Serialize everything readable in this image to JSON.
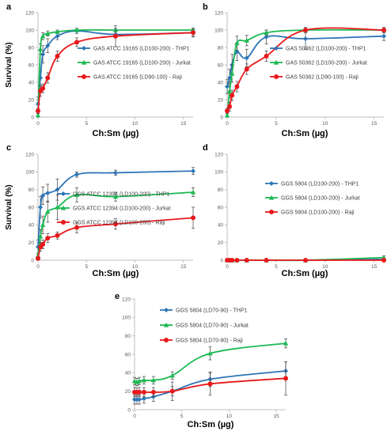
{
  "colors": {
    "blue": "#2E75B6",
    "green": "#1DB954",
    "red": "#E8191C",
    "axis": "#BFBFBF"
  },
  "chart_data": [
    {
      "panel": "a",
      "type": "line",
      "xlabel": "Ch:Sm (µg)",
      "ylabel": "Survival (%)",
      "xlim": [
        0,
        16
      ],
      "ylim": [
        0,
        120
      ],
      "xticks": [
        0,
        5,
        10,
        15
      ],
      "yticks": [
        0,
        20,
        40,
        60,
        80,
        100,
        120
      ],
      "legend_position": "center-right",
      "series": [
        {
          "name": "GAS ATCC 19165 (LD100-200) - THP1",
          "color": "blue",
          "marker": "diamond",
          "x": [
            0,
            0.25,
            0.5,
            1,
            2,
            4,
            8,
            16
          ],
          "y": [
            15,
            45,
            72,
            82,
            93,
            99,
            95,
            97
          ],
          "err": [
            8,
            8,
            10,
            8,
            4,
            3,
            4,
            4
          ]
        },
        {
          "name": "GAS ATCC 19165 (LD100-200) - Jurkat",
          "color": "green",
          "marker": "triangle",
          "x": [
            0,
            0.25,
            0.5,
            1,
            2,
            4,
            8,
            16
          ],
          "y": [
            2,
            78,
            93,
            96,
            98,
            100,
            100,
            100
          ],
          "err": [
            2,
            6,
            4,
            3,
            2,
            2,
            2,
            2
          ]
        },
        {
          "name": "GAS ATCC 19165 (LD90-100) - Raji",
          "color": "red",
          "marker": "circle",
          "x": [
            0,
            0.25,
            0.5,
            1,
            2,
            4,
            8,
            16
          ],
          "y": [
            7,
            30,
            33,
            45,
            70,
            86,
            93,
            97
          ],
          "err": [
            3,
            6,
            5,
            6,
            6,
            5,
            12,
            5
          ]
        }
      ]
    },
    {
      "panel": "b",
      "type": "line",
      "xlabel": "Ch:Sm (µg)",
      "ylabel": "",
      "xlim": [
        0,
        16
      ],
      "ylim": [
        0,
        120
      ],
      "xticks": [
        0,
        5,
        10,
        15
      ],
      "yticks": [
        0,
        20,
        40,
        60,
        80,
        100,
        120
      ],
      "legend_position": "center-right",
      "series": [
        {
          "name": "GAS 50362 (LD100-200) - THP1",
          "color": "blue",
          "marker": "diamond",
          "x": [
            0,
            0.25,
            0.5,
            1,
            2,
            4,
            8,
            16
          ],
          "y": [
            35,
            45,
            60,
            75,
            68,
            92,
            90,
            93
          ],
          "err": [
            8,
            10,
            12,
            10,
            10,
            8,
            12,
            5
          ]
        },
        {
          "name": "GAS 50362 (LD100-200) - Jurkat",
          "color": "green",
          "marker": "triangle",
          "x": [
            0,
            0.25,
            0.5,
            1,
            2,
            4,
            8,
            16
          ],
          "y": [
            2,
            30,
            50,
            85,
            88,
            97,
            100,
            100
          ],
          "err": [
            2,
            8,
            10,
            8,
            6,
            3,
            2,
            2
          ]
        },
        {
          "name": "GAS 50362 (LD90-100) - Raji",
          "color": "red",
          "marker": "circle",
          "x": [
            0,
            0.25,
            0.5,
            1,
            2,
            4,
            8,
            16
          ],
          "y": [
            7,
            12,
            25,
            35,
            55,
            70,
            100,
            100
          ],
          "err": [
            3,
            5,
            6,
            6,
            6,
            6,
            3,
            3
          ]
        }
      ]
    },
    {
      "panel": "c",
      "type": "line",
      "xlabel": "Ch:Sm (µg)",
      "ylabel": "Survival (%)",
      "xlim": [
        0,
        16
      ],
      "ylim": [
        0,
        120
      ],
      "xticks": [
        0,
        5,
        10,
        15
      ],
      "yticks": [
        0,
        20,
        40,
        60,
        80,
        100,
        120
      ],
      "legend_position": "lower-right",
      "series": [
        {
          "name": "GGS ATCC 12394 (LD100-200) - THP1",
          "color": "blue",
          "marker": "diamond",
          "x": [
            0,
            0.25,
            0.5,
            1,
            2,
            4,
            8,
            16
          ],
          "y": [
            15,
            60,
            73,
            76,
            80,
            97,
            99,
            101
          ],
          "err": [
            8,
            12,
            10,
            10,
            12,
            3,
            3,
            4
          ]
        },
        {
          "name": "GGS ATCC 12394 (LD100-200) - Jurkat",
          "color": "green",
          "marker": "triangle",
          "x": [
            0,
            0.25,
            0.5,
            1,
            2,
            4,
            8,
            16
          ],
          "y": [
            5,
            27,
            40,
            55,
            60,
            74,
            72,
            77
          ],
          "err": [
            3,
            8,
            10,
            12,
            14,
            8,
            5,
            5
          ]
        },
        {
          "name": "GGS ATCC 12394 (LD100-200) - Raji",
          "color": "red",
          "marker": "circle",
          "x": [
            0,
            0.25,
            0.5,
            1,
            2,
            4,
            8,
            16
          ],
          "y": [
            2,
            15,
            18,
            25,
            28,
            37,
            41,
            48
          ],
          "err": [
            2,
            5,
            5,
            5,
            4,
            6,
            6,
            12
          ]
        }
      ]
    },
    {
      "panel": "d",
      "type": "line",
      "xlabel": "Ch:Sm (µg)",
      "ylabel": "",
      "xlim": [
        0,
        16
      ],
      "ylim": [
        0,
        120
      ],
      "xticks": [
        0,
        5,
        10,
        15
      ],
      "yticks": [
        0,
        20,
        40,
        60,
        80,
        100,
        120
      ],
      "legend_position": "center-right",
      "series": [
        {
          "name": "GGS 5804 (LD100-200) - THP1",
          "color": "blue",
          "marker": "diamond",
          "x": [
            0,
            0.25,
            0.5,
            1,
            2,
            4,
            8,
            16
          ],
          "y": [
            0,
            0,
            0,
            0,
            0,
            0,
            0,
            1
          ],
          "err": [
            0,
            0,
            0,
            0,
            0,
            0,
            0,
            1
          ]
        },
        {
          "name": "GGS 5804 (LD100-200) - Jurkat",
          "color": "green",
          "marker": "triangle",
          "x": [
            0,
            0.25,
            0.5,
            1,
            2,
            4,
            8,
            16
          ],
          "y": [
            0,
            0,
            0,
            0,
            0,
            0,
            0,
            3
          ],
          "err": [
            0,
            0,
            0,
            0,
            0,
            0,
            0,
            2
          ]
        },
        {
          "name": "GGS 5804 (LD100-200) - Raji",
          "color": "red",
          "marker": "circle",
          "x": [
            0,
            0.25,
            0.5,
            1,
            2,
            4,
            8,
            16
          ],
          "y": [
            0,
            0,
            0,
            0,
            0,
            0,
            0,
            0
          ],
          "err": [
            0,
            0,
            0,
            0,
            0,
            0,
            0,
            0
          ]
        }
      ]
    },
    {
      "panel": "e",
      "type": "line",
      "xlabel": "Ch:Sm (µg)",
      "ylabel": "",
      "xlim": [
        0,
        16
      ],
      "ylim": [
        0,
        120
      ],
      "xticks": [
        0,
        5,
        10,
        15
      ],
      "yticks": [
        0,
        20,
        40,
        60,
        80,
        100,
        120
      ],
      "legend_position": "top-right",
      "series": [
        {
          "name": "GGS 5804 (LD70-90) - THP1",
          "color": "blue",
          "marker": "diamond",
          "x": [
            0,
            0.25,
            0.5,
            1,
            2,
            4,
            8,
            16
          ],
          "y": [
            11,
            11,
            11,
            12,
            14,
            20,
            33,
            42
          ],
          "err": [
            5,
            5,
            5,
            5,
            5,
            5,
            8,
            10
          ]
        },
        {
          "name": "GGS 5804 (LD70-90) - Jurkat",
          "color": "green",
          "marker": "triangle",
          "x": [
            0,
            0.25,
            0.5,
            1,
            2,
            4,
            8,
            16
          ],
          "y": [
            31,
            30,
            31,
            32,
            32,
            37,
            61,
            72
          ],
          "err": [
            4,
            4,
            4,
            4,
            4,
            4,
            7,
            5
          ]
        },
        {
          "name": "GGS 5804 (LD70-90) - Raji",
          "color": "red",
          "marker": "circle",
          "x": [
            0,
            0.25,
            0.5,
            1,
            2,
            4,
            8,
            16
          ],
          "y": [
            19,
            19,
            19,
            19,
            19,
            20,
            28,
            34
          ],
          "err": [
            5,
            5,
            5,
            5,
            5,
            10,
            12,
            18
          ]
        }
      ]
    }
  ]
}
